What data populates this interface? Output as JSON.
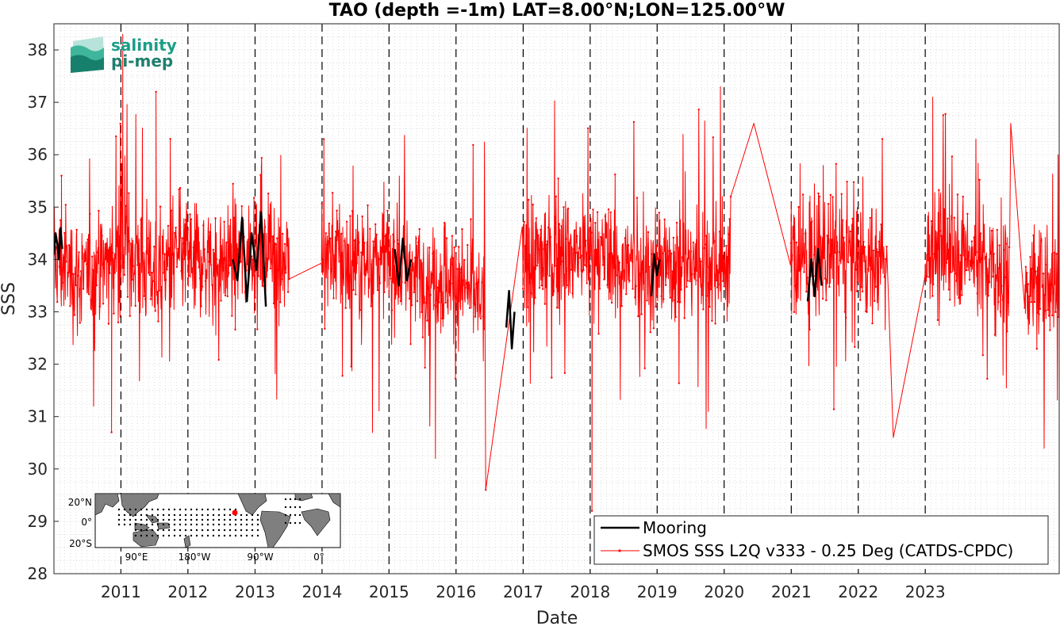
{
  "chart_data": {
    "type": "line",
    "title": "TAO (depth =-1m) LAT=8.00°N;LON=125.00°W",
    "xlabel": "Date",
    "ylabel": "SSS",
    "xlim": [
      "2010-01-01",
      "2024-12-31"
    ],
    "ylim": [
      28,
      38.5
    ],
    "y_ticks": [
      "28",
      "29",
      "30",
      "31",
      "32",
      "33",
      "34",
      "35",
      "36",
      "37",
      "38"
    ],
    "x_ticks": [
      "2011",
      "2012",
      "2013",
      "2014",
      "2015",
      "2016",
      "2017",
      "2018",
      "2019",
      "2020",
      "2021",
      "2022",
      "2023"
    ],
    "grid": "minor dotted",
    "year_markers": "dashed vertical lines at each year start",
    "legend_position": "bottom-right",
    "series": [
      {
        "name": "Mooring",
        "color": "#000000",
        "style": "thick line",
        "segments": [
          {
            "start": "2010-01-01",
            "end": "2010-02-15",
            "values": [
              34.1,
              34.5,
              34.3,
              34.0,
              34.6,
              34.2
            ]
          },
          {
            "start": "2012-09-01",
            "end": "2013-03-01",
            "values": [
              34.0,
              33.6,
              34.8,
              33.2,
              34.5,
              33.8,
              34.9,
              33.1
            ]
          },
          {
            "start": "2015-02-01",
            "end": "2015-05-01",
            "values": [
              34.2,
              33.5,
              34.4,
              33.6,
              34.0
            ]
          },
          {
            "start": "2016-10-01",
            "end": "2016-11-15",
            "values": [
              32.7,
              33.4,
              32.3,
              33.0
            ]
          },
          {
            "start": "2018-12-01",
            "end": "2019-01-15",
            "values": [
              33.3,
              34.1,
              33.7,
              34.0
            ]
          },
          {
            "start": "2021-04-01",
            "end": "2021-06-15",
            "values": [
              33.2,
              34.0,
              33.3,
              34.2,
              33.5
            ]
          }
        ]
      },
      {
        "name": "SMOS SSS L2Q v333 - 0.25 Deg (CATDS-CPDC)",
        "color": "#ff0000",
        "style": "thin line with point markers",
        "monthly_mean": [
          {
            "date": "2010-01",
            "value": 34.0
          },
          {
            "date": "2010-07",
            "value": 33.6
          },
          {
            "date": "2011-01",
            "value": 34.2
          },
          {
            "date": "2011-07",
            "value": 33.8
          },
          {
            "date": "2012-01",
            "value": 34.1
          },
          {
            "date": "2012-07",
            "value": 33.9
          },
          {
            "date": "2013-01",
            "value": 34.3
          },
          {
            "date": "2013-07",
            "value": 34.0
          },
          {
            "date": "2014-01",
            "value": 34.2
          },
          {
            "date": "2014-07",
            "value": 33.9
          },
          {
            "date": "2015-01",
            "value": 34.0
          },
          {
            "date": "2015-07",
            "value": 33.7
          },
          {
            "date": "2016-01",
            "value": 33.6
          },
          {
            "date": "2016-07",
            "value": 33.1
          },
          {
            "date": "2017-01",
            "value": 34.0
          },
          {
            "date": "2017-07",
            "value": 34.1
          },
          {
            "date": "2018-01",
            "value": 34.1
          },
          {
            "date": "2018-07",
            "value": 33.9
          },
          {
            "date": "2019-01",
            "value": 33.8
          },
          {
            "date": "2019-07",
            "value": 34.0
          },
          {
            "date": "2020-01",
            "value": 34.0
          },
          {
            "date": "2020-07",
            "value": 34.0
          },
          {
            "date": "2021-01",
            "value": 34.0
          },
          {
            "date": "2021-07",
            "value": 34.0
          },
          {
            "date": "2022-01",
            "value": 34.0
          },
          {
            "date": "2022-07",
            "value": 33.9
          },
          {
            "date": "2023-01",
            "value": 34.1
          },
          {
            "date": "2023-07",
            "value": 34.2
          },
          {
            "date": "2024-01",
            "value": 33.8
          },
          {
            "date": "2024-07",
            "value": 33.5
          },
          {
            "date": "2024-12",
            "value": 33.6
          }
        ],
        "extremes": [
          {
            "date": "2010-02",
            "value": 35.6
          },
          {
            "date": "2010-11",
            "value": 30.7
          },
          {
            "date": "2011-01",
            "value": 38.3
          },
          {
            "date": "2011-07",
            "value": 37.2
          },
          {
            "date": "2014-01",
            "value": 36.3
          },
          {
            "date": "2015-09",
            "value": 30.2
          },
          {
            "date": "2016-06",
            "value": 29.6
          },
          {
            "date": "2018-01",
            "value": 29.2
          },
          {
            "date": "2020-06",
            "value": 36.6
          },
          {
            "date": "2022-07",
            "value": 30.6
          },
          {
            "date": "2023-02",
            "value": 37.1
          },
          {
            "date": "2024-04",
            "value": 36.6
          }
        ],
        "gaps_bridged": [
          {
            "from": "2013-07",
            "to": "2014-01"
          },
          {
            "from": "2016-06",
            "to": "2017-01"
          },
          {
            "from": "2020-02",
            "to": "2021-01"
          },
          {
            "from": "2022-06",
            "to": "2023-01"
          },
          {
            "from": "2024-04",
            "to": "2024-07"
          }
        ]
      }
    ]
  },
  "logo": {
    "line1": "salinity",
    "line2": "pi-mep",
    "color": "#1a9e88"
  },
  "inset_map": {
    "lat_labels": [
      "20°N",
      "0°",
      "20°S"
    ],
    "lon_labels": [
      "90°E",
      "180°W",
      "90°W",
      "0°"
    ],
    "land_color": "#7f7f7f",
    "marker_color": "#ff0000"
  }
}
